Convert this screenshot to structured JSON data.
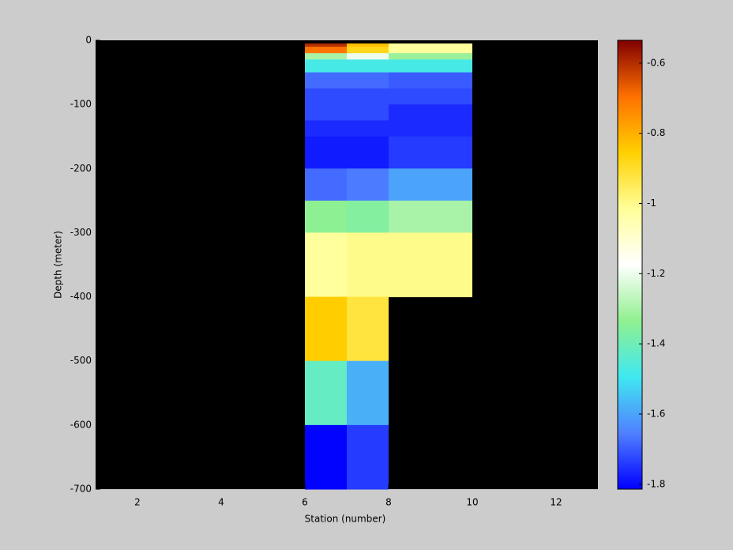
{
  "chart_data": {
    "type": "heatmap",
    "xlabel": "Station (number)",
    "ylabel": "Depth (meter)",
    "xlim": [
      1,
      13
    ],
    "ylim": [
      -700,
      0
    ],
    "xticks": [
      2,
      4,
      6,
      8,
      10,
      12
    ],
    "yticks": [
      0,
      -100,
      -200,
      -300,
      -400,
      -500,
      -600,
      -700
    ],
    "x_edges": [
      6,
      7,
      8,
      10
    ],
    "y_edges": [
      -5,
      -10,
      -20,
      -30,
      -50,
      -75,
      -100,
      -125,
      -150,
      -200,
      -250,
      -300,
      -400,
      -500,
      -600,
      -700
    ],
    "values": [
      [
        -0.6,
        -0.83,
        -1.02
      ],
      [
        -0.7,
        -0.88,
        -1.02
      ],
      [
        -1.3,
        -1.2,
        -1.32
      ],
      [
        -1.48,
        -1.48,
        -1.48
      ],
      [
        -1.68,
        -1.68,
        -1.7
      ],
      [
        -1.72,
        -1.72,
        -1.72
      ],
      [
        -1.72,
        -1.72,
        -1.76
      ],
      [
        -1.76,
        -1.76,
        -1.76
      ],
      [
        -1.78,
        -1.78,
        -1.74
      ],
      [
        -1.68,
        -1.66,
        -1.6
      ],
      [
        -1.34,
        -1.36,
        -1.3
      ],
      [
        -1.02,
        -1.0,
        -1.0
      ],
      [
        -0.85,
        -0.92,
        null
      ],
      [
        -1.42,
        -1.58,
        null
      ],
      [
        -1.81,
        -1.74,
        null
      ]
    ],
    "clim": [
      -1.814,
      -0.535
    ],
    "cticks": [
      -0.6,
      -0.8,
      -1,
      -1.2,
      -1.4,
      -1.6,
      -1.8
    ],
    "colormap": [
      "#0000ff",
      "#5080ff",
      "#40e8f0",
      "#90f090",
      "#ffffff",
      "#ffff99",
      "#ffd000",
      "#ff7000",
      "#800000"
    ],
    "missing_color": "#000000"
  }
}
